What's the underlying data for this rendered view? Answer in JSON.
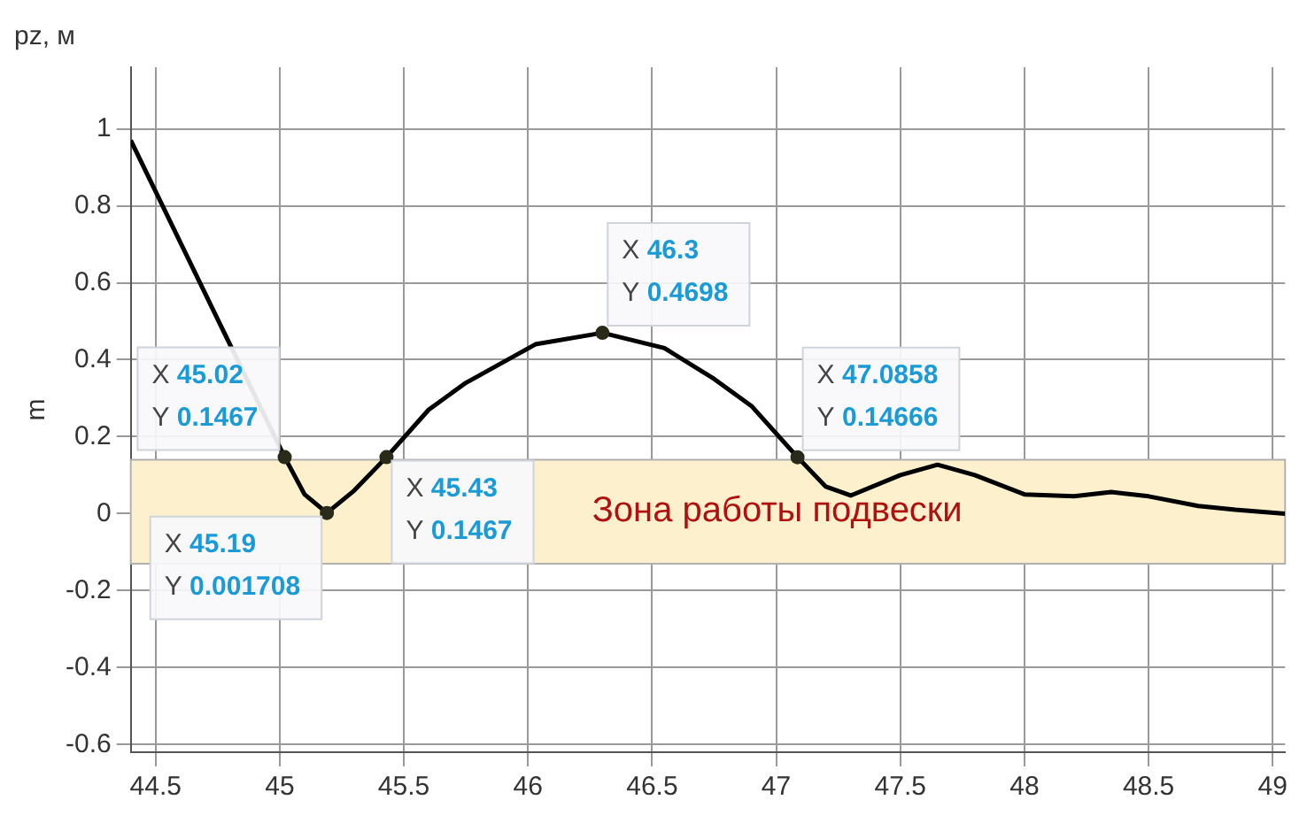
{
  "chart_data": {
    "type": "line",
    "title": "pz, м",
    "ylabel": "m",
    "xlim": [
      44.4,
      49.05
    ],
    "xticks": [
      44.5,
      45,
      45.5,
      46,
      46.5,
      47,
      47.5,
      48,
      48.5,
      49
    ],
    "ylim": [
      -0.62,
      1.16
    ],
    "yticks": [
      -0.6,
      -0.4,
      -0.2,
      0,
      0.2,
      0.4,
      0.6,
      0.8,
      1
    ],
    "grid": true,
    "legend": false,
    "marker": "none",
    "line_style": "solid",
    "series": [
      {
        "color": "#000000",
        "x": [
          44.4,
          45.02,
          45.1,
          45.19,
          45.3,
          45.43,
          45.6,
          45.75,
          46.03,
          46.3,
          46.55,
          46.75,
          46.9,
          47.0858,
          47.2,
          47.3,
          47.5,
          47.65,
          47.8,
          48.0,
          48.2,
          48.35,
          48.5,
          48.7,
          48.85,
          49.05
        ],
        "values": [
          0.97,
          0.1467,
          0.05,
          0.001708,
          0.06,
          0.1467,
          0.27,
          0.34,
          0.44,
          0.4698,
          0.43,
          0.35,
          0.28,
          0.14666,
          0.07,
          0.047,
          0.1,
          0.127,
          0.1,
          0.05,
          0.045,
          0.056,
          0.045,
          0.02,
          0.01,
          0.0
        ]
      }
    ],
    "bands": [
      {
        "axis": "y",
        "from": -0.13,
        "to": 0.14,
        "label": "Зона работы подвески",
        "color": "#fdf0cc"
      }
    ],
    "annotations": [
      {
        "text": "X 45.02\nY 0.1467",
        "x": 45.02,
        "y": 0.1467
      },
      {
        "text": "X 45.19\nY 0.001708",
        "x": 45.19,
        "y": 0.001708
      },
      {
        "text": "X 45.43\nY 0.1467",
        "x": 45.43,
        "y": 0.1467
      },
      {
        "text": "X 46.3\nY 0.4698",
        "x": 46.3,
        "y": 0.4698
      },
      {
        "text": "X 47.0858\nY 0.14666",
        "x": 47.0858,
        "y": 0.14666
      }
    ]
  }
}
